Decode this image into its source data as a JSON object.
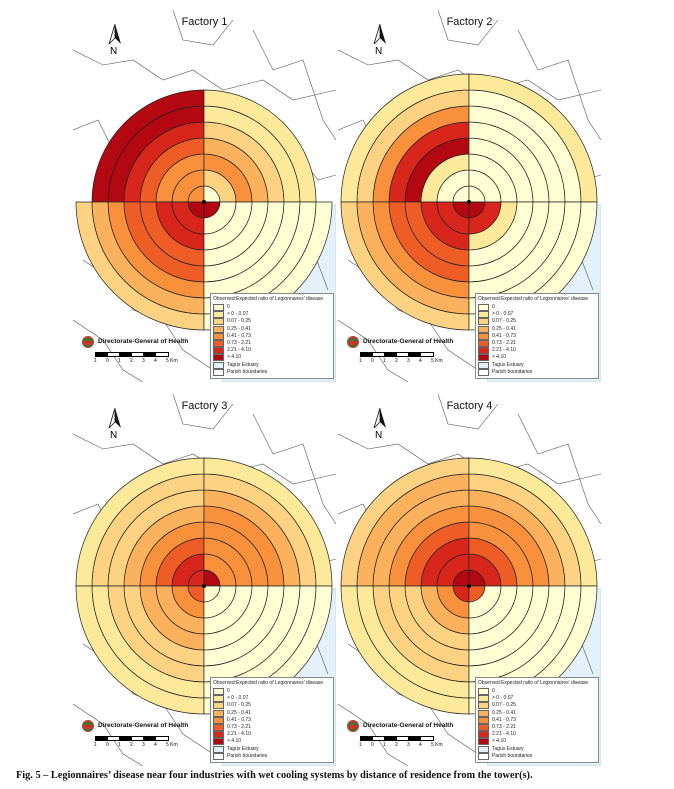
{
  "panels": [
    {
      "title": "Factory 1",
      "north": "N",
      "rings": {
        "upper_left": [
          4,
          4,
          4,
          5,
          6,
          7,
          7
        ],
        "upper_right": [
          0,
          2,
          4,
          3,
          2,
          1,
          1
        ],
        "lower_left": [
          7,
          6,
          6,
          5,
          5,
          4,
          3,
          2
        ],
        "lower_right": [
          7,
          0,
          0,
          0,
          0,
          0,
          0,
          0
        ]
      }
    },
    {
      "title": "Factory 2",
      "north": "N",
      "rings": {
        "upper_left": [
          0,
          0,
          1,
          7,
          6,
          4,
          2,
          1
        ],
        "upper_right": [
          0,
          0,
          0,
          0,
          0,
          0,
          0,
          1
        ],
        "lower_left": [
          7,
          6,
          6,
          5,
          5,
          4,
          3,
          2
        ],
        "lower_right": [
          7,
          6,
          1,
          0,
          0,
          0,
          0,
          0
        ]
      }
    },
    {
      "title": "Factory 3",
      "north": "N",
      "rings": {
        "upper_left": [
          6,
          6,
          5,
          4,
          3,
          2,
          2,
          1
        ],
        "upper_right": [
          7,
          4,
          4,
          4,
          4,
          3,
          2,
          1
        ],
        "lower_left": [
          5,
          4,
          3,
          3,
          2,
          2,
          1,
          1
        ],
        "lower_right": [
          0,
          0,
          0,
          0,
          0,
          0,
          0,
          0
        ]
      }
    },
    {
      "title": "Factory 4",
      "north": "N",
      "rings": {
        "upper_left": [
          7,
          6,
          6,
          5,
          4,
          3,
          3,
          2
        ],
        "upper_right": [
          7,
          6,
          5,
          4,
          4,
          3,
          2,
          1
        ],
        "lower_left": [
          6,
          4,
          3,
          2,
          2,
          2,
          1,
          1
        ],
        "lower_right": [
          5,
          0,
          0,
          0,
          0,
          0,
          0,
          0
        ]
      }
    }
  ],
  "legend": {
    "title": "Observed:Expected ratio of Legionnaires' disease",
    "classes": [
      {
        "label": "0",
        "color": "#ffffd4"
      },
      {
        "label": "> 0 - 0.07",
        "color": "#fde99a"
      },
      {
        "label": "0.07 - 0.25",
        "color": "#fdd283"
      },
      {
        "label": "0.25 - 0.41",
        "color": "#fcb15c"
      },
      {
        "label": "0.41 - 0.73",
        "color": "#f9903c"
      },
      {
        "label": "0.73 - 2.21",
        "color": "#ef5d26"
      },
      {
        "label": "2.21 - 4.10",
        "color": "#d8261c"
      },
      {
        "label": "> 4.10",
        "color": "#b30812"
      }
    ],
    "extras": [
      {
        "label": "Tagus Estuary",
        "color": "#e3f1fb"
      },
      {
        "label": "Parish boundaries",
        "color": "#ffffff"
      }
    ]
  },
  "logo_text": "Directorate-General of Health",
  "scale": {
    "labels": [
      "1",
      "0",
      "1",
      "2",
      "3",
      "4",
      "5 Km"
    ]
  },
  "caption": "Fig. 5 – Legionnaires’ disease near four industries with wet cooling systems by distance of residence from the tower(s).",
  "colors": {
    "estuary": "#e3f1fb",
    "boundary": "#555555"
  }
}
